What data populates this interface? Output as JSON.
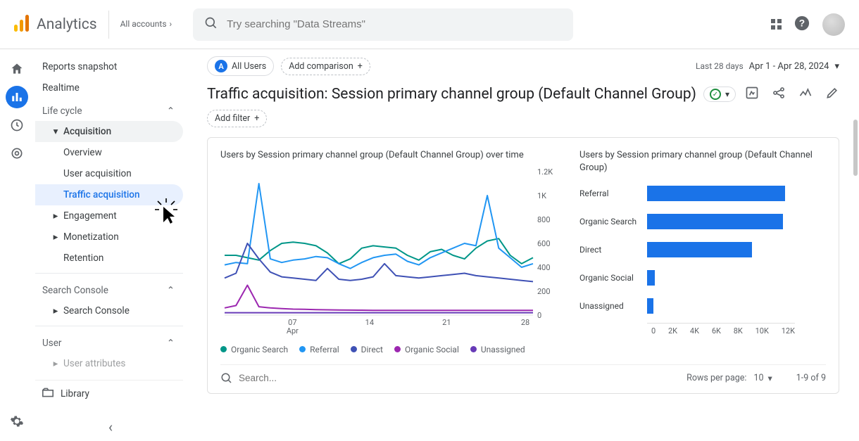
{
  "header": {
    "product_name": "Analytics",
    "account_line": "All accounts",
    "search_placeholder": "Try searching \"Data Streams\""
  },
  "nav": {
    "items": {
      "reports_snapshot": "Reports snapshot",
      "realtime": "Realtime"
    },
    "sections": {
      "life_cycle": "Life cycle",
      "search_console": "Search Console",
      "user": "User"
    },
    "life_cycle": {
      "acquisition": "Acquisition",
      "overview": "Overview",
      "user_acquisition": "User acquisition",
      "traffic_acquisition": "Traffic acquisition",
      "engagement": "Engagement",
      "monetization": "Monetization",
      "retention": "Retention"
    },
    "search_console_item": "Search Console",
    "user_attributes": "User attributes",
    "library": "Library"
  },
  "toolbar": {
    "all_users": "All Users",
    "add_comparison": "Add comparison",
    "date_label": "Last 28 days",
    "date_range": "Apr 1 - Apr 28, 2024",
    "add_filter": "Add filter"
  },
  "page": {
    "title": "Traffic acquisition: Session primary channel group (Default Channel Group)"
  },
  "line_chart": {
    "title": "Users by Session primary channel group (Default Channel Group) over time",
    "y_ticks": [
      "0",
      "200",
      "400",
      "600",
      "800",
      "1K",
      "1.2K"
    ],
    "y_max": 1200,
    "x_ticks": [
      {
        "pos": 0.22,
        "label_top": "07",
        "label_bottom": "Apr"
      },
      {
        "pos": 0.47,
        "label_top": "14",
        "label_bottom": ""
      },
      {
        "pos": 0.72,
        "label_top": "21",
        "label_bottom": ""
      },
      {
        "pos": 0.975,
        "label_top": "28",
        "label_bottom": ""
      }
    ],
    "series": [
      {
        "name": "Organic Search",
        "color": "#009688",
        "values": [
          500,
          500,
          480,
          460,
          540,
          600,
          610,
          600,
          580,
          520,
          430,
          470,
          560,
          580,
          570,
          560,
          500,
          460,
          530,
          550,
          500,
          470,
          560,
          620,
          640,
          500,
          430,
          480
        ]
      },
      {
        "name": "Referral",
        "color": "#2196f3",
        "values": [
          420,
          440,
          430,
          1100,
          470,
          440,
          460,
          470,
          490,
          480,
          430,
          390,
          440,
          480,
          500,
          510,
          450,
          420,
          480,
          520,
          560,
          600,
          580,
          1000,
          560,
          480,
          400,
          430
        ]
      },
      {
        "name": "Direct",
        "color": "#3f51b5",
        "values": [
          310,
          350,
          600,
          470,
          360,
          320,
          310,
          300,
          290,
          390,
          300,
          290,
          300,
          320,
          430,
          330,
          320,
          310,
          320,
          330,
          340,
          350,
          330,
          320,
          310,
          300,
          290,
          280
        ]
      },
      {
        "name": "Organic Social",
        "color": "#9c27b0",
        "values": [
          60,
          80,
          250,
          70,
          60,
          55,
          50,
          48,
          45,
          44,
          43,
          42,
          41,
          40,
          40,
          40,
          40,
          40,
          40,
          40,
          40,
          40,
          40,
          40,
          40,
          40,
          40,
          40
        ]
      },
      {
        "name": "Unassigned",
        "color": "#673ab7",
        "values": [
          20,
          20,
          20,
          20,
          20,
          20,
          20,
          20,
          20,
          20,
          20,
          20,
          20,
          20,
          20,
          20,
          20,
          20,
          20,
          20,
          20,
          20,
          20,
          20,
          20,
          20,
          20,
          20
        ]
      }
    ]
  },
  "bar_chart": {
    "title": "Users by Session primary channel group (Default Channel Group)",
    "x_max": 12000,
    "x_ticks": [
      "0",
      "2K",
      "4K",
      "6K",
      "8K",
      "10K",
      "12K"
    ],
    "bar_color": "#1a73e8",
    "bars": [
      {
        "label": "Referral",
        "value": 11200
      },
      {
        "label": "Organic Search",
        "value": 11000
      },
      {
        "label": "Direct",
        "value": 8500
      },
      {
        "label": "Organic Social",
        "value": 600
      },
      {
        "label": "Unassigned",
        "value": 500
      }
    ]
  },
  "legend": {
    "items": [
      {
        "label": "Organic Search",
        "color": "#009688"
      },
      {
        "label": "Referral",
        "color": "#2196f3"
      },
      {
        "label": "Direct",
        "color": "#3f51b5"
      },
      {
        "label": "Organic Social",
        "color": "#9c27b0"
      },
      {
        "label": "Unassigned",
        "color": "#673ab7"
      }
    ]
  },
  "table": {
    "search_placeholder": "Search...",
    "rows_per_page_label": "Rows per page:",
    "rows_per_page_value": "10",
    "range": "1-9 of 9"
  }
}
